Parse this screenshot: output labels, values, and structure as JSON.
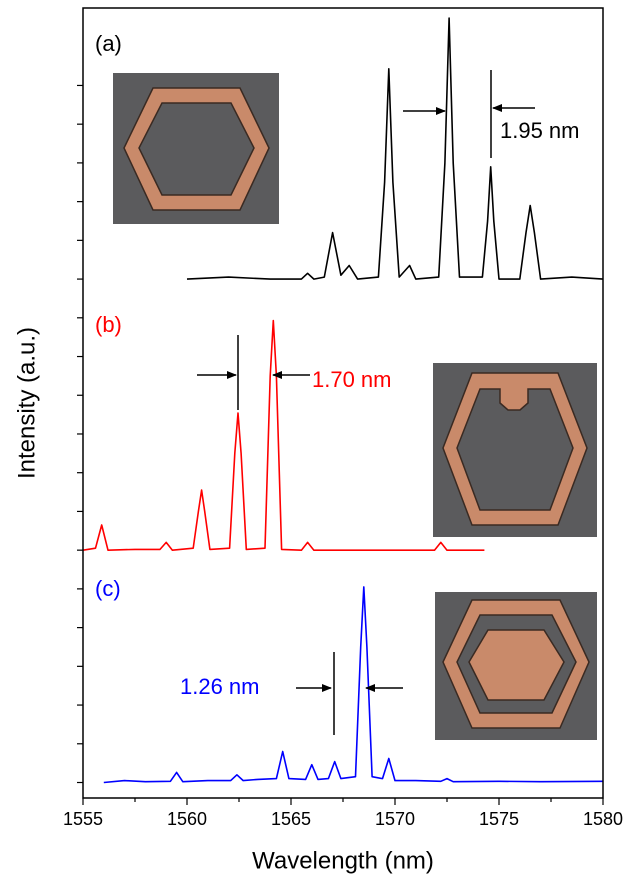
{
  "chart_data": {
    "type": "line",
    "x_label": "Wavelength (nm)",
    "y_label": "Intensity (a.u.)",
    "xlim": [
      1555,
      1580
    ],
    "xticks": [
      1555,
      1560,
      1565,
      1570,
      1575,
      1580
    ],
    "ylim": [
      -0.4,
      20
    ],
    "yticks": [
      0,
      1,
      2,
      3,
      4,
      5,
      6,
      7,
      8,
      9,
      10,
      11,
      12,
      13,
      14,
      15,
      16,
      17,
      18
    ],
    "series": [
      {
        "name": "(a)",
        "color": "#000000",
        "x": [
          1560,
          1562,
          1564,
          1565.5,
          1565.8,
          1566.1,
          1566.6,
          1567.0,
          1567.4,
          1567.8,
          1568.2,
          1569.2,
          1569.5,
          1569.7,
          1569.9,
          1570.2,
          1570.7,
          1571.0,
          1572.1,
          1572.4,
          1572.6,
          1572.8,
          1573.1,
          1574.2,
          1574.45,
          1574.6,
          1574.75,
          1575.0,
          1576.0,
          1576.3,
          1576.5,
          1576.7,
          1577.0,
          1578.5,
          1580
        ],
        "values": [
          13.0,
          13.05,
          13.0,
          13.0,
          13.15,
          13.0,
          13.05,
          14.2,
          13.1,
          13.35,
          13.0,
          13.05,
          15.5,
          18.43,
          15.5,
          13.05,
          13.35,
          13.0,
          13.05,
          16.0,
          19.74,
          16.0,
          13.05,
          13.05,
          14.5,
          15.9,
          14.5,
          13.0,
          13.0,
          14.2,
          14.9,
          14.2,
          13.0,
          13.05,
          13.0
        ]
      },
      {
        "name": "(b)",
        "color": "#ff0000",
        "x": [
          1555,
          1555.6,
          1555.9,
          1556.2,
          1557.5,
          1558.7,
          1559.0,
          1559.3,
          1560.3,
          1560.55,
          1560.7,
          1560.85,
          1561.1,
          1562.05,
          1562.3,
          1562.45,
          1562.6,
          1562.85,
          1563.75,
          1564.0,
          1564.15,
          1564.3,
          1564.55,
          1565.5,
          1565.8,
          1566.1,
          1568,
          1570,
          1571.9,
          1572.2,
          1572.5,
          1574.3
        ],
        "values": [
          6.0,
          6.05,
          6.65,
          6.0,
          6.02,
          6.02,
          6.2,
          6.0,
          6.05,
          7.0,
          7.55,
          7.0,
          6.02,
          6.05,
          8.5,
          9.54,
          8.5,
          6.02,
          6.05,
          10.5,
          11.93,
          10.5,
          6.02,
          6.0,
          6.2,
          6.0,
          6.0,
          6.0,
          6.0,
          6.2,
          6.0,
          6.0
        ]
      },
      {
        "name": "(c)",
        "color": "#0000ff",
        "x": [
          1556,
          1557,
          1558,
          1559.2,
          1559.5,
          1559.8,
          1561,
          1562.1,
          1562.4,
          1562.7,
          1563.4,
          1564.3,
          1564.6,
          1564.9,
          1565.7,
          1566.0,
          1566.3,
          1566.8,
          1567.1,
          1567.4,
          1568.1,
          1568.35,
          1568.5,
          1568.65,
          1568.9,
          1569.4,
          1569.7,
          1570.0,
          1571,
          1572.2,
          1572.5,
          1572.8,
          1575,
          1577,
          1580
        ],
        "values": [
          0,
          0.05,
          0.02,
          0.03,
          0.26,
          0.02,
          0.05,
          0.05,
          0.2,
          0.05,
          0.08,
          0.1,
          0.8,
          0.1,
          0.08,
          0.46,
          0.08,
          0.1,
          0.54,
          0.1,
          0.15,
          3.5,
          5.05,
          3.5,
          0.15,
          0.1,
          0.62,
          0.05,
          0.05,
          0.03,
          0.1,
          0.02,
          0.03,
          0.02,
          0.03
        ]
      }
    ],
    "annotations": [
      "1.95 nm",
      "1.70 nm",
      "1.26 nm"
    ]
  }
}
